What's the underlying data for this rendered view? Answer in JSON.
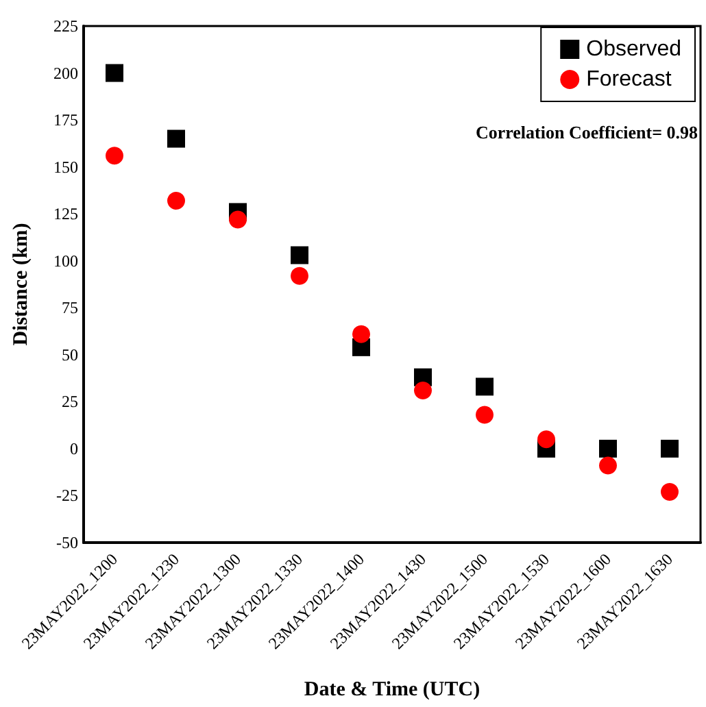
{
  "chart_data": {
    "type": "scatter",
    "xlabel": "Date & Time (UTC)",
    "ylabel": "Distance (km)",
    "categories": [
      "23MAY2022_1200",
      "23MAY2022_1230",
      "23MAY2022_1300",
      "23MAY2022_1330",
      "23MAY2022_1400",
      "23MAY2022_1430",
      "23MAY2022_1500",
      "23MAY2022_1530",
      "23MAY2022_1600",
      "23MAY2022_1630"
    ],
    "series": [
      {
        "name": "Observed",
        "color": "#000000",
        "marker": "square",
        "values": [
          200,
          165,
          126,
          103,
          54,
          38,
          33,
          0,
          0,
          0
        ]
      },
      {
        "name": "Forecast",
        "color": "#ff0000",
        "marker": "circle",
        "values": [
          156,
          132,
          122,
          92,
          61,
          31,
          18,
          5,
          -9,
          -23
        ]
      }
    ],
    "ylim": [
      -50,
      225
    ],
    "yticks": [
      -50,
      -25,
      0,
      25,
      50,
      75,
      100,
      125,
      150,
      175,
      200,
      225
    ],
    "grid": false,
    "legend": "top right",
    "annotations": [
      "Correlation Coefficient= 0.98"
    ]
  }
}
